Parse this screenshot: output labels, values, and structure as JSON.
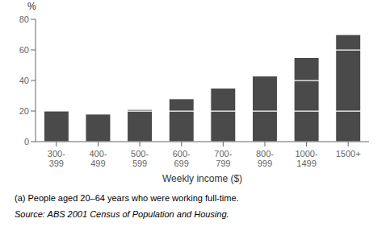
{
  "chart_data": {
    "type": "bar",
    "categories": [
      "300-\n399",
      "400-\n499",
      "500-\n599",
      "600-\n699",
      "700-\n799",
      "800-\n999",
      "1000-\n1499",
      "1500+"
    ],
    "series": [
      {
        "color": "#4a4a4a",
        "values": [
          20,
          18,
          20,
          20,
          20,
          20,
          20,
          20
        ]
      },
      {
        "color": "#4a4a4a",
        "values": [
          null,
          null,
          1,
          8,
          15,
          23,
          20,
          40
        ]
      },
      {
        "color": "#4a4a4a",
        "values": [
          null,
          null,
          null,
          null,
          null,
          null,
          15,
          10
        ]
      }
    ],
    "stacked": true,
    "ylabel": "%",
    "xlabel": "Weekly income ($)",
    "ylim": [
      0,
      80
    ],
    "yticks": [
      0,
      20,
      40,
      60,
      80
    ],
    "grid": false,
    "annotations": [
      "(a) People aged 20–64 years who were working full-time.",
      "Source: ABS 2001 Census of Population and Housing."
    ]
  }
}
